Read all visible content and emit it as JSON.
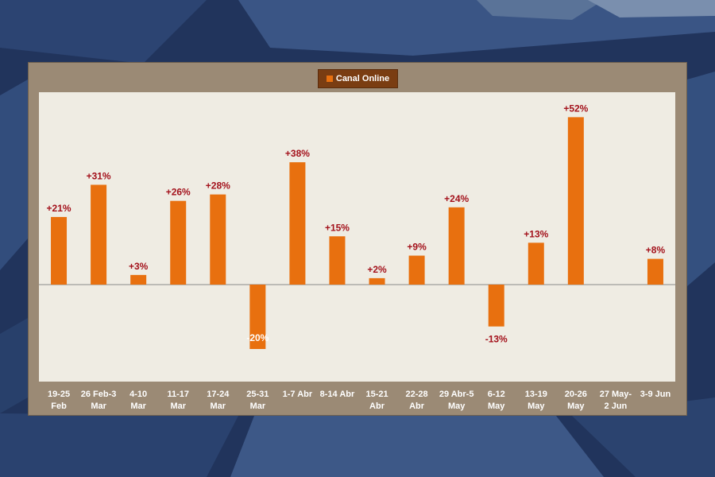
{
  "colors": {
    "bar": "#e8700f",
    "label_positive": "#a3111b",
    "label_negative": "#a3111b",
    "label_inside": "#ffffff",
    "axis_tick_text": "#ffffff",
    "plot_background": "#efece3",
    "frame_background": "#9b8a75",
    "legend_background": "#7a3d12"
  },
  "legend": {
    "label": "Canal Online"
  },
  "chart_data": {
    "type": "bar",
    "title": "",
    "xlabel": "",
    "ylabel": "",
    "legend_position": "top-center",
    "grid": false,
    "ylim": [
      -40,
      60
    ],
    "series": [
      {
        "name": "Canal Online",
        "values": [
          21,
          31,
          3,
          26,
          28,
          -20,
          38,
          15,
          2,
          9,
          24,
          -13,
          13,
          52,
          null,
          8
        ]
      }
    ],
    "categories": [
      [
        "19-25",
        "Feb"
      ],
      [
        "26 Feb-3",
        "Mar"
      ],
      [
        "4-10",
        "Mar"
      ],
      [
        "11-17",
        "Mar"
      ],
      [
        "17-24",
        "Mar"
      ],
      [
        "25-31",
        "Mar"
      ],
      [
        "1-7 Abr"
      ],
      [
        "8-14 Abr"
      ],
      [
        "15-21",
        "Abr"
      ],
      [
        "22-28",
        "Abr"
      ],
      [
        "29 Abr-5",
        "May"
      ],
      [
        "6-12",
        "May"
      ],
      [
        "13-19",
        "May"
      ],
      [
        "20-26",
        "May"
      ],
      [
        "27 May-",
        "2 Jun"
      ],
      [
        "3-9 Jun"
      ]
    ],
    "data_labels": [
      "+21%",
      "+31%",
      "+3%",
      "+26%",
      "+28%",
      "-20%",
      "+38%",
      "+15%",
      "+2%",
      "+9%",
      "+24%",
      "-13%",
      "+13%",
      "+52%",
      "",
      "+8%"
    ]
  }
}
